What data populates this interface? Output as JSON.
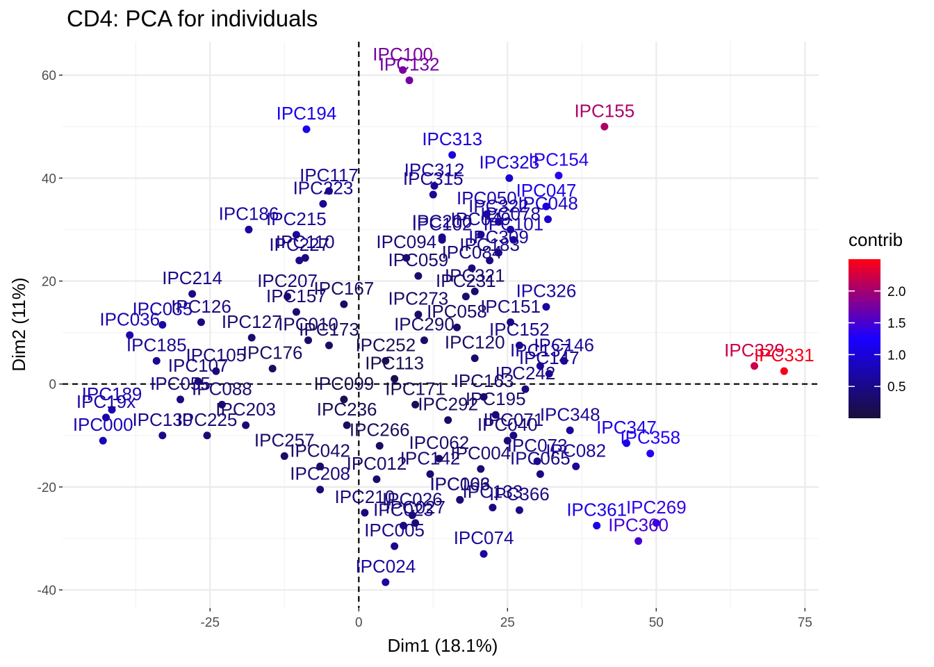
{
  "chart_data": {
    "type": "scatter",
    "title": "CD4: PCA for individuals",
    "xlabel": "Dim1 (18.1%)",
    "ylabel": "Dim2 (11%)",
    "xlim": [
      -49.8,
      77.3
    ],
    "ylim": [
      -43.5,
      66.5
    ],
    "x_ticks": [
      -25,
      0,
      25,
      50,
      75
    ],
    "x_tick_labels": [
      "-25",
      "0",
      "25",
      "50",
      "75"
    ],
    "y_ticks": [
      -40,
      -20,
      0,
      20,
      40,
      60
    ],
    "y_tick_labels": [
      "-40",
      "-20",
      "0",
      "20",
      "40",
      "60"
    ],
    "grid": true,
    "reference_lines": {
      "x": 0,
      "y": 0,
      "style": "dashed"
    },
    "color_scale": {
      "title": "contrib",
      "min": 0.0,
      "max": 2.5,
      "stops": [
        "#1a0f3a",
        "#1a00ff",
        "#ff0012"
      ],
      "ticks": [
        0.5,
        1.0,
        1.5,
        2.0
      ],
      "tick_labels": [
        "0.5",
        "1.0",
        "1.5",
        "2.0"
      ]
    },
    "legend_position": "right",
    "points": [
      {
        "label": "IPC100",
        "x": 7.4,
        "y": 61.0,
        "contrib": 1.78
      },
      {
        "label": "IPC132",
        "x": 8.5,
        "y": 59.0,
        "contrib": 1.74
      },
      {
        "label": "IPC155",
        "x": 41.3,
        "y": 50.0,
        "contrib": 2.05
      },
      {
        "label": "IPC194",
        "x": -8.8,
        "y": 49.5,
        "contrib": 1.15
      },
      {
        "label": "IPC313",
        "x": 15.7,
        "y": 44.5,
        "contrib": 1.0
      },
      {
        "label": "IPC323",
        "x": 25.3,
        "y": 40.0,
        "contrib": 0.95
      },
      {
        "label": "IPC154",
        "x": 33.6,
        "y": 40.5,
        "contrib": 1.35
      },
      {
        "label": "IPC312",
        "x": 12.7,
        "y": 38.5,
        "contrib": 0.6
      },
      {
        "label": "IPC315",
        "x": 12.5,
        "y": 36.8,
        "contrib": 0.55
      },
      {
        "label": "IPC117",
        "x": -5.0,
        "y": 37.5,
        "contrib": 0.55
      },
      {
        "label": "IPC223",
        "x": -6.0,
        "y": 35.0,
        "contrib": 0.55
      },
      {
        "label": "IPC047",
        "x": 31.5,
        "y": 34.5,
        "contrib": 1.1
      },
      {
        "label": "IPC050",
        "x": 21.5,
        "y": 33.0,
        "contrib": 0.75
      },
      {
        "label": "IPC048",
        "x": 31.8,
        "y": 32.0,
        "contrib": 0.9
      },
      {
        "label": "IPC186",
        "x": -18.5,
        "y": 30.0,
        "contrib": 0.65
      },
      {
        "label": "IPC215",
        "x": -10.5,
        "y": 29.0,
        "contrib": 0.6
      },
      {
        "label": "IPC101",
        "x": 26.0,
        "y": 28.0,
        "contrib": 0.7
      },
      {
        "label": "IPC200",
        "x": 14.0,
        "y": 28.5,
        "contrib": 0.5
      },
      {
        "label": "IPC227",
        "x": -10.0,
        "y": 24.0,
        "contrib": 0.5
      },
      {
        "label": "IPC110",
        "x": -9.0,
        "y": 24.5,
        "contrib": 0.45
      },
      {
        "label": "IPC102",
        "x": 14.0,
        "y": 28.0,
        "contrib": 0.5
      },
      {
        "label": "IPC309",
        "x": 23.5,
        "y": 25.5,
        "contrib": 0.6
      },
      {
        "label": "IPC326",
        "x": 31.5,
        "y": 15.0,
        "contrib": 0.65
      },
      {
        "label": "IPC035",
        "x": -33.0,
        "y": 11.5,
        "contrib": 0.7
      },
      {
        "label": "IPC036",
        "x": -38.5,
        "y": 9.5,
        "contrib": 0.75
      },
      {
        "label": "IPC151",
        "x": 25.5,
        "y": 12.0,
        "contrib": 0.45
      },
      {
        "label": "IPC152",
        "x": 27.0,
        "y": 7.5,
        "contrib": 0.5
      },
      {
        "label": "IPC137",
        "x": 30.5,
        "y": 3.5,
        "contrib": 0.6
      },
      {
        "label": "IPC146",
        "x": 34.5,
        "y": 4.5,
        "contrib": 0.6
      },
      {
        "label": "IPC147",
        "x": 32.0,
        "y": 2.0,
        "contrib": 0.55
      },
      {
        "label": "IPC329",
        "x": 66.5,
        "y": 3.5,
        "contrib": 2.2
      },
      {
        "label": "IPC331",
        "x": 71.5,
        "y": 2.5,
        "contrib": 2.45
      },
      {
        "label": "IPC010",
        "x": -8.5,
        "y": 8.5,
        "contrib": 0.3
      },
      {
        "label": "IPC242",
        "x": 28.0,
        "y": -1.0,
        "contrib": 0.45
      },
      {
        "label": "IPC348",
        "x": 35.5,
        "y": -9.0,
        "contrib": 0.6
      },
      {
        "label": "IPC071",
        "x": 26.0,
        "y": -10.0,
        "contrib": 0.45
      },
      {
        "label": "IPC347",
        "x": 45.0,
        "y": -11.5,
        "contrib": 1.1
      },
      {
        "label": "IPC358",
        "x": 49.0,
        "y": -13.5,
        "contrib": 1.3
      },
      {
        "label": "IPC082",
        "x": 36.5,
        "y": -16.0,
        "contrib": 0.6
      },
      {
        "label": "IPC073",
        "x": 30.0,
        "y": -15.0,
        "contrib": 0.5
      },
      {
        "label": "IPC065",
        "x": 30.5,
        "y": -17.5,
        "contrib": 0.45
      },
      {
        "label": "IPC366",
        "x": 27.0,
        "y": -24.5,
        "contrib": 0.5
      },
      {
        "label": "IPC133",
        "x": 22.5,
        "y": -24.0,
        "contrib": 0.45
      },
      {
        "label": "IPC066",
        "x": 17.0,
        "y": -22.5,
        "contrib": 0.4
      },
      {
        "label": "IPC361",
        "x": 40.0,
        "y": -27.5,
        "contrib": 1.1
      },
      {
        "label": "IPC269",
        "x": 50.0,
        "y": -27.0,
        "contrib": 1.4
      },
      {
        "label": "IPC360",
        "x": 47.0,
        "y": -30.5,
        "contrib": 1.5
      },
      {
        "label": "IPC027",
        "x": 9.5,
        "y": -27.0,
        "contrib": 0.4
      },
      {
        "label": "IPC026",
        "x": 9.0,
        "y": -25.5,
        "contrib": 0.4
      },
      {
        "label": "IPC074",
        "x": 21.0,
        "y": -33.0,
        "contrib": 0.6
      },
      {
        "label": "IPC023",
        "x": 7.5,
        "y": -27.5,
        "contrib": 0.45
      },
      {
        "label": "IPC005",
        "x": 6.0,
        "y": -31.5,
        "contrib": 0.5
      },
      {
        "label": "IPC024",
        "x": 4.5,
        "y": -38.5,
        "contrib": 0.65
      },
      {
        "label": "IPC189",
        "x": -41.5,
        "y": -5.0,
        "contrib": 0.75
      },
      {
        "label": "IPC000",
        "x": -43.0,
        "y": -11.0,
        "contrib": 0.8
      },
      {
        "label": "IPC19x",
        "x": -42.5,
        "y": -6.5,
        "contrib": 0.7
      },
      {
        "label": "IPC225",
        "x": -25.5,
        "y": -10.0,
        "contrib": 0.35
      },
      {
        "label": "IPC257",
        "x": -12.5,
        "y": -14.0,
        "contrib": 0.3
      },
      {
        "label": "IPC042",
        "x": -6.5,
        "y": -16.0,
        "contrib": 0.3
      },
      {
        "label": "IPC062",
        "x": 13.5,
        "y": -14.5,
        "contrib": 0.3
      },
      {
        "label": "IPC040",
        "x": 25.0,
        "y": -11.0,
        "contrib": 0.35
      },
      {
        "label": "IPC004",
        "x": 20.5,
        "y": -16.5,
        "contrib": 0.35
      },
      {
        "label": "IPC103",
        "x": 17.0,
        "y": -22.5,
        "contrib": 0.35
      },
      {
        "label": "IPC208",
        "x": -6.5,
        "y": -20.5,
        "contrib": 0.4
      },
      {
        "label": "IPC210",
        "x": 1.0,
        "y": -25.0,
        "contrib": 0.4
      },
      {
        "label": "IPC142",
        "x": 12.0,
        "y": -17.5,
        "contrib": 0.35
      },
      {
        "label": "IPC214",
        "x": -28.0,
        "y": 17.5,
        "contrib": 0.5
      },
      {
        "label": "IPC207",
        "x": -12.0,
        "y": 17.0,
        "contrib": 0.4
      },
      {
        "label": "IPC157",
        "x": -10.5,
        "y": 14.0,
        "contrib": 0.35
      },
      {
        "label": "IPC126",
        "x": -26.5,
        "y": 12.0,
        "contrib": 0.45
      },
      {
        "label": "IPC273",
        "x": 10.0,
        "y": 13.5,
        "contrib": 0.3
      },
      {
        "label": "IPC231",
        "x": 18.0,
        "y": 17.0,
        "contrib": 0.35
      },
      {
        "label": "IPC321",
        "x": 19.5,
        "y": 18.0,
        "contrib": 0.35
      },
      {
        "label": "IPC059",
        "x": 10.0,
        "y": 21.0,
        "contrib": 0.35
      },
      {
        "label": "IPC094",
        "x": 8.0,
        "y": 24.5,
        "contrib": 0.4
      },
      {
        "label": "IPC084",
        "x": 19.0,
        "y": 22.5,
        "contrib": 0.4
      },
      {
        "label": "IPC183",
        "x": 22.0,
        "y": 24.0,
        "contrib": 0.45
      },
      {
        "label": "IPC078",
        "x": 25.5,
        "y": 30.0,
        "contrib": 0.6
      },
      {
        "label": "IPC322",
        "x": 23.5,
        "y": 31.5,
        "contrib": 0.6
      },
      {
        "label": "IPC049",
        "x": 20.5,
        "y": 29.0,
        "contrib": 0.55
      },
      {
        "label": "IPC058",
        "x": 16.5,
        "y": 11.0,
        "contrib": 0.3
      },
      {
        "label": "IPC290",
        "x": 11.0,
        "y": 8.5,
        "contrib": 0.3
      },
      {
        "label": "IPC120",
        "x": 19.5,
        "y": 5.0,
        "contrib": 0.3
      },
      {
        "label": "IPC173",
        "x": -5.0,
        "y": 7.5,
        "contrib": 0.25
      },
      {
        "label": "IPC163",
        "x": 21.0,
        "y": -2.5,
        "contrib": 0.3
      },
      {
        "label": "IPC252",
        "x": 4.5,
        "y": 4.5,
        "contrib": 0.2
      },
      {
        "label": "IPC167",
        "x": -2.5,
        "y": 15.5,
        "contrib": 0.3
      },
      {
        "label": "IPC127",
        "x": -18.0,
        "y": 9.0,
        "contrib": 0.35
      },
      {
        "label": "IPC105",
        "x": -24.0,
        "y": 2.5,
        "contrib": 0.4
      },
      {
        "label": "IPC107",
        "x": -27.0,
        "y": 0.5,
        "contrib": 0.4
      },
      {
        "label": "IPC088",
        "x": -23.0,
        "y": -4.0,
        "contrib": 0.35
      },
      {
        "label": "IPC055",
        "x": -30.0,
        "y": -3.0,
        "contrib": 0.45
      },
      {
        "label": "IPC203",
        "x": -19.0,
        "y": -8.0,
        "contrib": 0.35
      },
      {
        "label": "IPC130",
        "x": -33.0,
        "y": -10.0,
        "contrib": 0.5
      },
      {
        "label": "IPC185",
        "x": -34.0,
        "y": 4.5,
        "contrib": 0.55
      },
      {
        "label": "IPC236",
        "x": -2.0,
        "y": -8.0,
        "contrib": 0.2
      },
      {
        "label": "IPC266",
        "x": 3.5,
        "y": -12.0,
        "contrib": 0.25
      },
      {
        "label": "IPC171",
        "x": 9.5,
        "y": -4.0,
        "contrib": 0.2
      },
      {
        "label": "IPC292",
        "x": 15.0,
        "y": -7.0,
        "contrib": 0.25
      },
      {
        "label": "IPC195",
        "x": 23.0,
        "y": -6.0,
        "contrib": 0.35
      },
      {
        "label": "IPC012",
        "x": 3.0,
        "y": -18.5,
        "contrib": 0.3
      },
      {
        "label": "IPC099",
        "x": -2.5,
        "y": -3.0,
        "contrib": 0.15
      },
      {
        "label": "IPC113",
        "x": 6.0,
        "y": 1.0,
        "contrib": 0.15
      },
      {
        "label": "IPC176",
        "x": -14.5,
        "y": 3.0,
        "contrib": 0.25
      }
    ]
  }
}
